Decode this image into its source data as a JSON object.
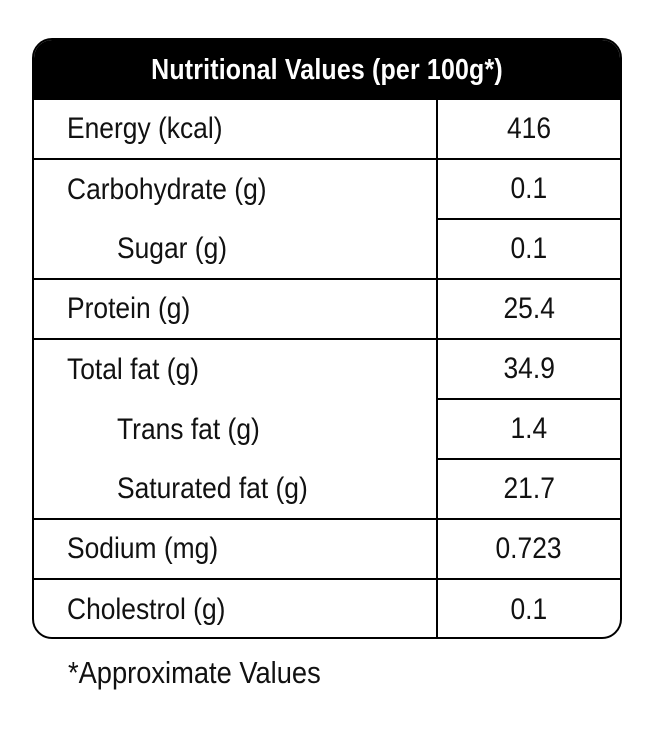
{
  "table": {
    "title": "Nutritional Values (per 100g*)",
    "rows": [
      {
        "label": "Energy (kcal)",
        "value": "416"
      },
      {
        "label": "Carbohydrate (g)",
        "value": "0.1"
      },
      {
        "label": "Sugar (g)",
        "value": "0.1"
      },
      {
        "label": "Protein (g)",
        "value": "25.4"
      },
      {
        "label": "Total fat (g)",
        "value": "34.9"
      },
      {
        "label": "Trans fat (g)",
        "value": "1.4"
      },
      {
        "label": "Saturated fat (g)",
        "value": "21.7"
      },
      {
        "label": "Sodium (mg)",
        "value": "0.723"
      },
      {
        "label": "Cholestrol (g)",
        "value": "0.1"
      }
    ]
  },
  "footnote": "*Approximate Values"
}
